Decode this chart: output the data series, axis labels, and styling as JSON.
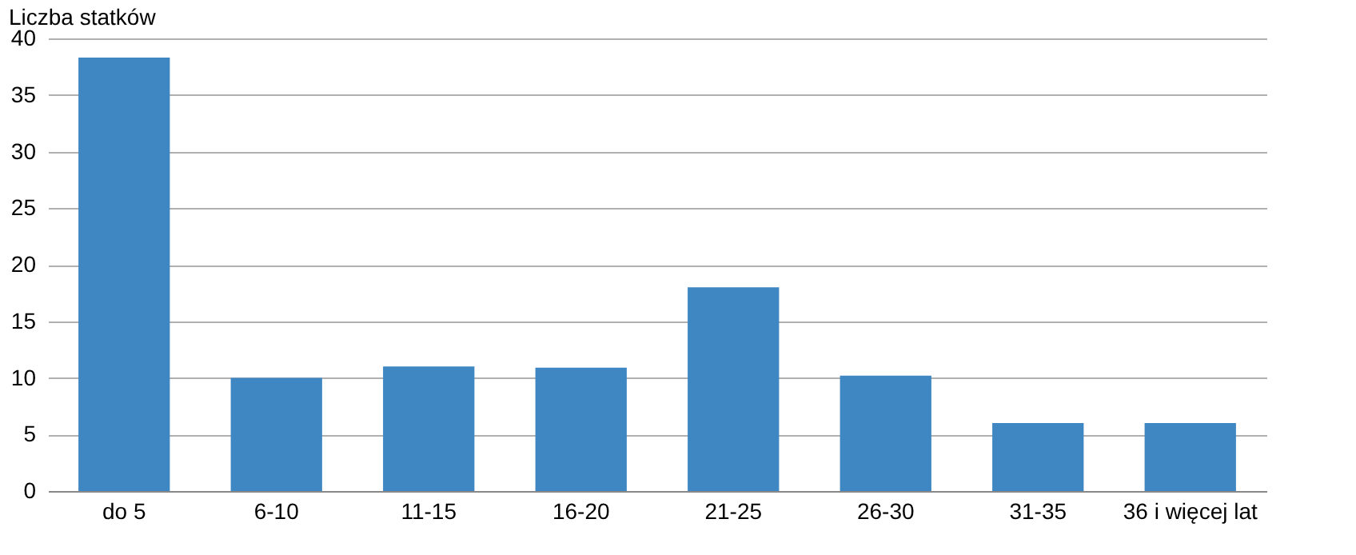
{
  "chart_data": {
    "type": "bar",
    "ylabel": "Liczba statków",
    "categories": [
      "do 5",
      "6-10",
      "11-15",
      "16-20",
      "21-25",
      "26-30",
      "31-35",
      "36 i więcej  lat"
    ],
    "values": [
      38.3,
      10,
      11,
      10.9,
      18,
      10.2,
      6,
      6
    ],
    "color": "#3f87c2",
    "ylim": [
      0,
      40
    ],
    "yticks": [
      0,
      5,
      10,
      15,
      20,
      25,
      30,
      35,
      40
    ],
    "grid": "y"
  }
}
